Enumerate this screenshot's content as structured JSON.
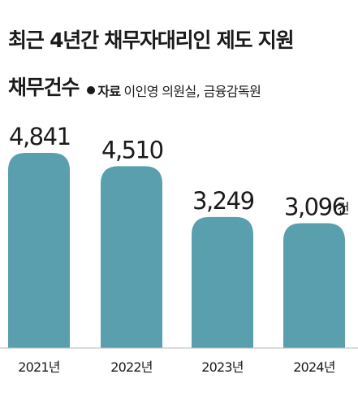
{
  "title": "최근 4년간 채무자대리인 제도 지원",
  "subtitle": "채무건수",
  "source": {
    "label": "자료",
    "text": "이인영 의원실, 금융감독원"
  },
  "colors": {
    "bar": "#5a9fad",
    "text": "#1a1a1a",
    "baseline": "#b9b9b9"
  },
  "chart_data": {
    "type": "bar",
    "categories": [
      "2021년",
      "2022년",
      "2023년",
      "2024년"
    ],
    "values": [
      4841,
      4510,
      3249,
      3096
    ],
    "value_labels": [
      "4,841",
      "4,510",
      "3,249",
      "3,096"
    ],
    "unit": "건",
    "title": "최근 4년간 채무자대리인 제도 지원",
    "subtitle": "채무건수"
  }
}
